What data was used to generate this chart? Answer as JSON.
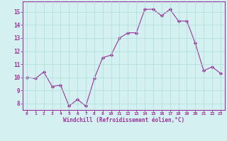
{
  "x": [
    0,
    1,
    2,
    3,
    4,
    5,
    6,
    7,
    8,
    9,
    10,
    11,
    12,
    13,
    14,
    15,
    16,
    17,
    18,
    19,
    20,
    21,
    22,
    23
  ],
  "y": [
    10.0,
    9.9,
    10.4,
    9.3,
    9.4,
    7.8,
    8.3,
    7.8,
    9.9,
    11.5,
    11.7,
    13.0,
    13.4,
    13.4,
    15.2,
    15.2,
    14.7,
    15.2,
    14.3,
    14.3,
    12.6,
    10.5,
    10.8,
    10.3
  ],
  "line_color": "#993399",
  "marker": "D",
  "marker_size": 2.2,
  "bg_color": "#d5f0f0",
  "grid_color": "#aadddd",
  "xlabel": "Windchill (Refroidissement éolien,°C)",
  "xlabel_color": "#993399",
  "tick_color": "#993399",
  "spine_color": "#993399",
  "ylim": [
    7.5,
    15.8
  ],
  "xlim": [
    -0.5,
    23.5
  ],
  "yticks": [
    8,
    9,
    10,
    11,
    12,
    13,
    14,
    15
  ],
  "xticks": [
    0,
    1,
    2,
    3,
    4,
    5,
    6,
    7,
    8,
    9,
    10,
    11,
    12,
    13,
    14,
    15,
    16,
    17,
    18,
    19,
    20,
    21,
    22,
    23
  ],
  "xtick_fontsize": 4.5,
  "ytick_fontsize": 5.5,
  "xlabel_fontsize": 5.5
}
